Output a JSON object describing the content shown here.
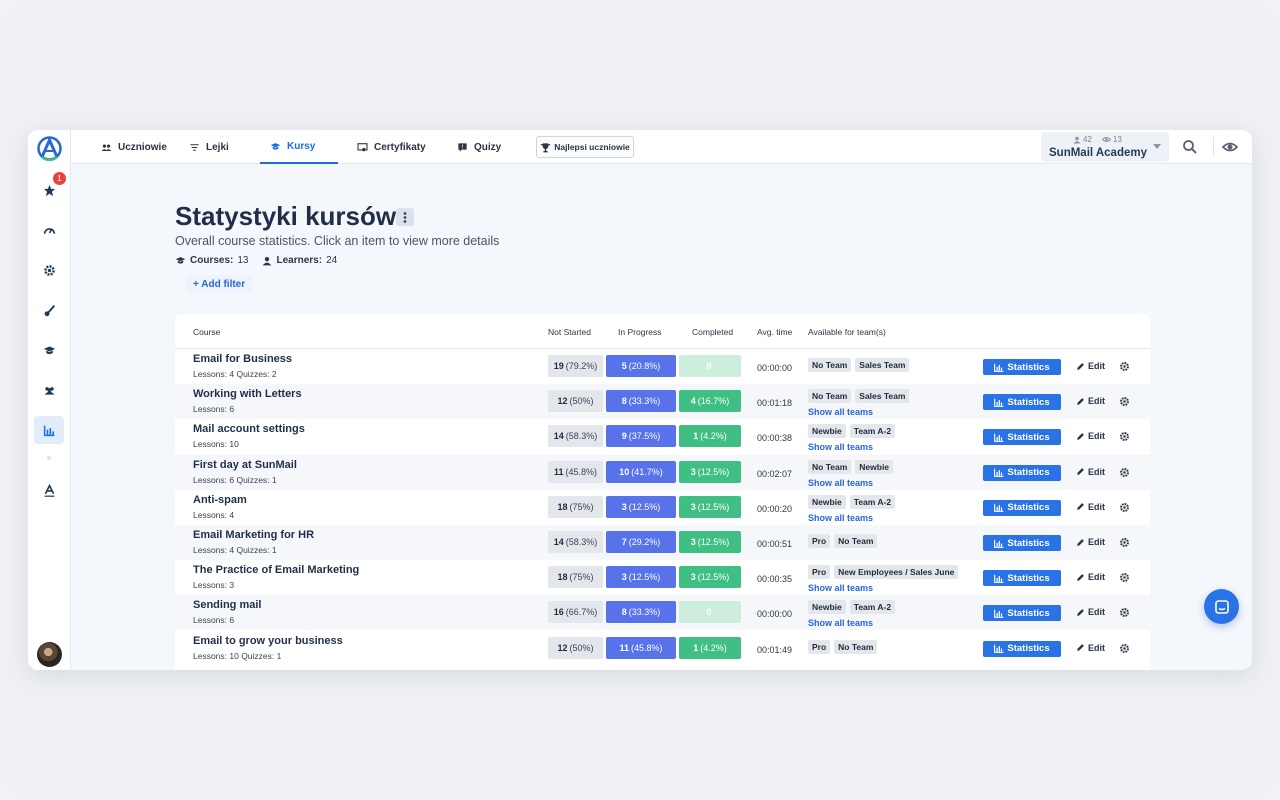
{
  "topbar": {
    "tabs": [
      {
        "label": "Uczniowie",
        "icon": "users-icon"
      },
      {
        "label": "Lejki",
        "icon": "filter-icon"
      },
      {
        "label": "Kursy",
        "icon": "graduation-cap-icon",
        "active": true
      },
      {
        "label": "Certyfikaty",
        "icon": "certificate-icon"
      },
      {
        "label": "Quizy",
        "icon": "quiz-icon"
      }
    ],
    "best_students_label": "Najlepsi uczniowie",
    "academy": {
      "learners": "42",
      "views": "13",
      "name": "SunMail Academy"
    }
  },
  "sidebar": {
    "badge": "1"
  },
  "page": {
    "title": "Statystyki kursów",
    "subtitle": "Overall course statistics. Click an item to view more details",
    "courses_label": "Courses:",
    "courses_count": "13",
    "learners_label": "Learners:",
    "learners_count": "24",
    "add_filter": "+ Add filter"
  },
  "table": {
    "headers": {
      "course": "Course",
      "not_started": "Not Started",
      "in_progress": "In Progress",
      "completed": "Completed",
      "avg_time": "Avg. time",
      "teams": "Available for team(s)"
    },
    "statistics_label": "Statistics",
    "edit_label": "Edit",
    "show_all_label": "Show all teams",
    "rows": [
      {
        "name": "Email for Business",
        "sub": "Lessons: 4 Quizzes: 2",
        "ns": "19",
        "ns_pct": "(79.2%)",
        "ip": "5",
        "ip_pct": "(20.8%)",
        "cp": "0",
        "cp_pct": "",
        "avg": "00:00:00",
        "teams": [
          "No Team",
          "Sales Team"
        ],
        "show_all": false
      },
      {
        "name": "Working with Letters",
        "sub": "Lessons: 6",
        "ns": "12",
        "ns_pct": "(50%)",
        "ip": "8",
        "ip_pct": "(33.3%)",
        "cp": "4",
        "cp_pct": "(16.7%)",
        "avg": "00:01:18",
        "teams": [
          "No Team",
          "Sales Team"
        ],
        "show_all": true
      },
      {
        "name": "Mail account settings",
        "sub": "Lessons: 10",
        "ns": "14",
        "ns_pct": "(58.3%)",
        "ip": "9",
        "ip_pct": "(37.5%)",
        "cp": "1",
        "cp_pct": "(4.2%)",
        "avg": "00:00:38",
        "teams": [
          "Newbie",
          "Team A-2"
        ],
        "show_all": true
      },
      {
        "name": "First day at SunMail",
        "sub": "Lessons: 6 Quizzes: 1",
        "ns": "11",
        "ns_pct": "(45.8%)",
        "ip": "10",
        "ip_pct": "(41.7%)",
        "cp": "3",
        "cp_pct": "(12.5%)",
        "avg": "00:02:07",
        "teams": [
          "No Team",
          "Newbie"
        ],
        "show_all": true
      },
      {
        "name": "Anti-spam",
        "sub": "Lessons: 4",
        "ns": "18",
        "ns_pct": "(75%)",
        "ip": "3",
        "ip_pct": "(12.5%)",
        "cp": "3",
        "cp_pct": "(12.5%)",
        "avg": "00:00:20",
        "teams": [
          "Newbie",
          "Team A-2"
        ],
        "show_all": true
      },
      {
        "name": "Email Marketing for HR",
        "sub": "Lessons: 4 Quizzes: 1",
        "ns": "14",
        "ns_pct": "(58.3%)",
        "ip": "7",
        "ip_pct": "(29.2%)",
        "cp": "3",
        "cp_pct": "(12.5%)",
        "avg": "00:00:51",
        "teams": [
          "Pro",
          "No Team"
        ],
        "show_all": false
      },
      {
        "name": "The Practice of Email Marketing",
        "sub": "Lessons: 3",
        "ns": "18",
        "ns_pct": "(75%)",
        "ip": "3",
        "ip_pct": "(12.5%)",
        "cp": "3",
        "cp_pct": "(12.5%)",
        "avg": "00:00:35",
        "teams": [
          "Pro",
          "New Employees / Sales June"
        ],
        "show_all": true
      },
      {
        "name": "Sending mail",
        "sub": "Lessons: 6",
        "ns": "16",
        "ns_pct": "(66.7%)",
        "ip": "8",
        "ip_pct": "(33.3%)",
        "cp": "0",
        "cp_pct": "",
        "avg": "00:00:00",
        "teams": [
          "Newbie",
          "Team A-2"
        ],
        "show_all": true
      },
      {
        "name": "Email to grow your business",
        "sub": "Lessons: 10 Quizzes: 1",
        "ns": "12",
        "ns_pct": "(50%)",
        "ip": "11",
        "ip_pct": "(45.8%)",
        "cp": "1",
        "cp_pct": "(4.2%)",
        "avg": "00:01:49",
        "teams": [
          "Pro",
          "No Team"
        ],
        "show_all": false
      }
    ]
  },
  "colors": {
    "accent": "#1a6de0",
    "in_progress": "#5872ea",
    "completed": "#3fbf84",
    "not_started": "#e3e6eb"
  }
}
